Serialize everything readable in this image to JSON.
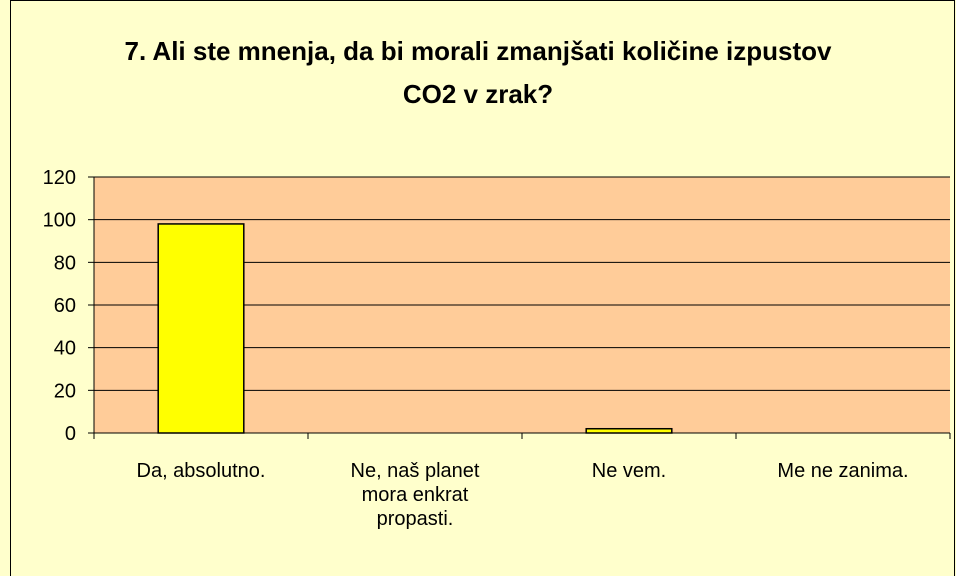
{
  "chart_data": {
    "type": "bar",
    "title": "7. Ali ste mnenja, da bi morali zmanjšati količine izpustov CO2 v zrak?",
    "categories": [
      "Da, absolutno.",
      "Ne, naš planet mora enkrat propasti.",
      "Ne vem.",
      "Me ne zanima."
    ],
    "values": [
      98,
      0,
      2,
      0
    ],
    "color": "#ffff00",
    "ylim": [
      0,
      120
    ],
    "yticks": [
      0,
      20,
      40,
      60,
      80,
      100,
      120
    ],
    "grid": true
  }
}
